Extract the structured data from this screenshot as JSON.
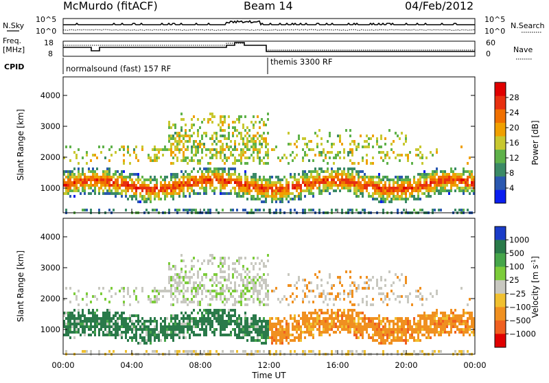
{
  "header": {
    "station": "McMurdo (fitACF)",
    "beam": "Beam 14",
    "date": "04/Feb/2012"
  },
  "status_panel": {
    "nsky_label": "N.Sky",
    "nsky_ticks": [
      "10^5",
      "10^0"
    ],
    "nsearch_label": "N.Search",
    "nsearch_ticks": [
      "10^5",
      "10^0"
    ],
    "freq_label_top": "Freq.",
    "freq_label_bottom": "[MHz]",
    "freq_ticks": [
      "18",
      "8"
    ],
    "nave_label": "Nave",
    "nave_ticks": [
      "60",
      "0"
    ],
    "cpid_label": "CPID",
    "cpid_segments": [
      {
        "label": "normalsound (fast) 157 RF",
        "start_hour": 0,
        "end_hour": 11.9
      },
      {
        "label": "themis 3300 RF",
        "start_hour": 11.9,
        "end_hour": 24
      }
    ]
  },
  "chart_data": [
    {
      "type": "heatmap",
      "name": "power",
      "ylabel": "Slant Range [km]",
      "yticks": [
        "1000",
        "2000",
        "3000",
        "4000"
      ],
      "ylim": [
        200,
        4600
      ],
      "xlim": [
        0,
        24
      ],
      "colorbar": {
        "label": "Power [dB]",
        "ticks": [
          "4",
          "8",
          "12",
          "16",
          "20",
          "24",
          "28"
        ],
        "colors": [
          "#0a1ef0",
          "#2a58b0",
          "#3b8a66",
          "#5fb24a",
          "#c8c830",
          "#f0a000",
          "#f07000",
          "#e83010",
          "#e00000"
        ]
      }
    },
    {
      "type": "heatmap",
      "name": "velocity",
      "ylabel": "Slant Range [km]",
      "yticks": [
        "1000",
        "2000",
        "3000",
        "4000"
      ],
      "ylim": [
        200,
        4600
      ],
      "xlim": [
        0,
        24
      ],
      "xlabel": "Time UT",
      "xticks": [
        "00:00",
        "04:00",
        "08:00",
        "12:00",
        "16:00",
        "20:00",
        "00:00"
      ],
      "colorbar": {
        "label_main": "Velocity ",
        "label_unit": "[m s",
        "label_exp": "-1",
        "label_close": "]",
        "ticks": [
          "1000",
          "500",
          "100",
          "25",
          "−25",
          "−100",
          "−500",
          "−1000"
        ],
        "colors": [
          "#1a3cc8",
          "#2a7a4a",
          "#46a64a",
          "#7ccc3a",
          "#c8c8c0",
          "#f0c030",
          "#f09020",
          "#f06020",
          "#e00000"
        ]
      }
    }
  ],
  "colors": {
    "slant_band_power": "#e83010",
    "slant_band_velocity_west": "#3b8a5a",
    "slant_band_velocity_east": "#f07a10"
  }
}
